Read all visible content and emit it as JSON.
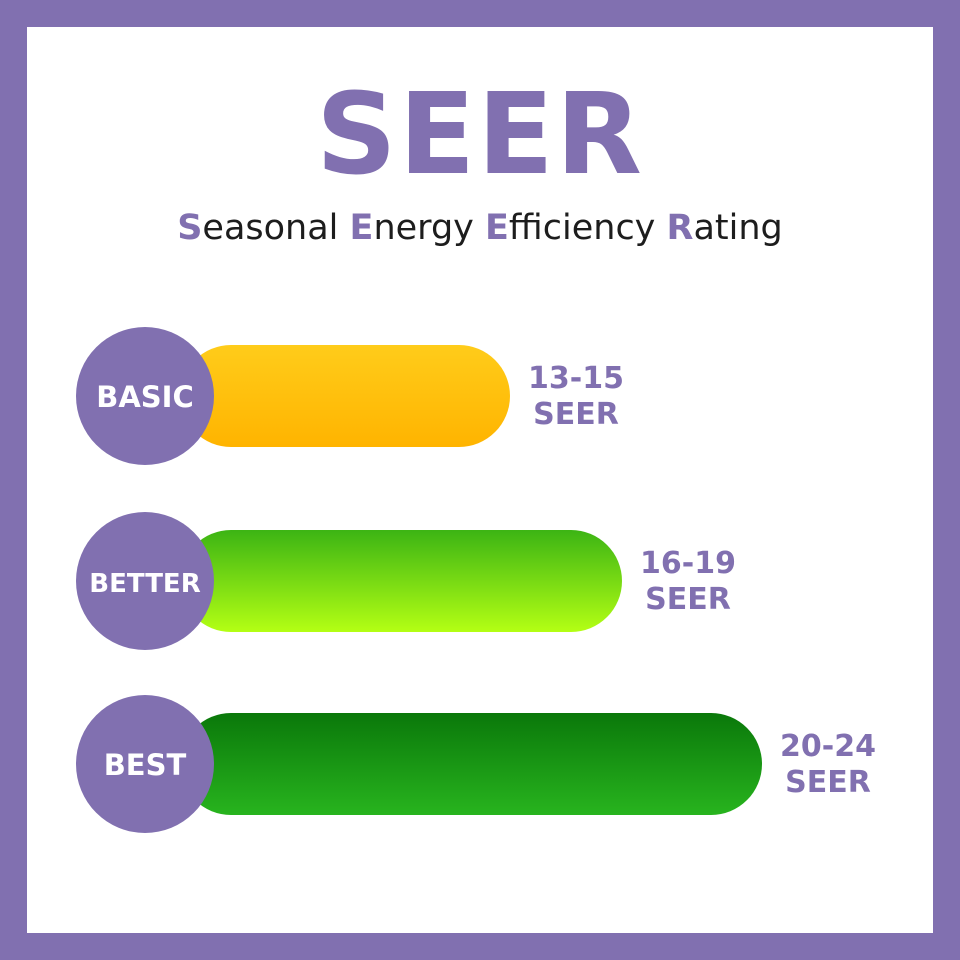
{
  "title": "SEER",
  "subtitle": [
    {
      "lead": "S",
      "rest": "easonal "
    },
    {
      "lead": "E",
      "rest": "nergy "
    },
    {
      "lead": "E",
      "rest": "fficiency "
    },
    {
      "lead": "R",
      "rest": "ating"
    }
  ],
  "colors": {
    "frame": "#8170b0",
    "circle": "#8170b0",
    "label_text": "#ffffff",
    "range_text": "#8170b0"
  },
  "chart_data": {
    "type": "bar",
    "orientation": "horizontal",
    "categories": [
      "BASIC",
      "BETTER",
      "BEST"
    ],
    "ranges": [
      [
        13,
        15
      ],
      [
        16,
        19
      ],
      [
        20,
        24
      ]
    ],
    "range_labels": [
      {
        "range": "13-15",
        "unit": "SEER"
      },
      {
        "range": "16-19",
        "unit": "SEER"
      },
      {
        "range": "20-24",
        "unit": "SEER"
      }
    ],
    "bar_colors": [
      {
        "top": "#ffcc1a",
        "bottom": "#ffb400"
      },
      {
        "top": "#3cb414",
        "bottom": "#b4ff14"
      },
      {
        "top": "#0a780a",
        "bottom": "#28b41e"
      }
    ],
    "grid": false,
    "legend": "none"
  }
}
